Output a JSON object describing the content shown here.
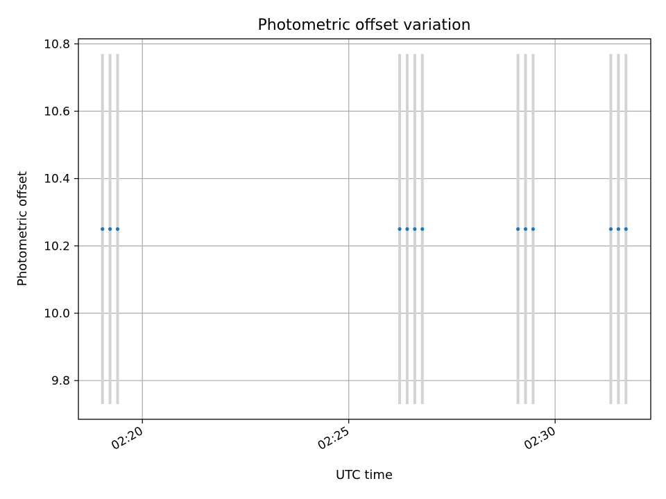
{
  "chart_data": {
    "type": "scatter",
    "title": "Photometric offset variation",
    "xlabel": "UTC time",
    "ylabel": "Photometric offset",
    "x_is_time": true,
    "xlim": [
      "02:18:27",
      "02:32:19"
    ],
    "ylim": [
      9.685,
      10.815
    ],
    "x_ticks": [
      "02:20",
      "02:25",
      "02:30"
    ],
    "y_ticks": [
      9.8,
      10.0,
      10.2,
      10.4,
      10.6,
      10.8
    ],
    "grid": true,
    "colors": {
      "points": "#1f77b4",
      "error_bars": "#d3d3d3",
      "grid": "#b0b0b0",
      "axes": "#000000"
    },
    "points": [
      {
        "x": "02:19:02",
        "y": 10.25,
        "yerr": 0.52
      },
      {
        "x": "02:19:13",
        "y": 10.25,
        "yerr": 0.52
      },
      {
        "x": "02:19:24",
        "y": 10.25,
        "yerr": 0.52
      },
      {
        "x": "02:26:14",
        "y": 10.25,
        "yerr": 0.52
      },
      {
        "x": "02:26:25",
        "y": 10.25,
        "yerr": 0.52
      },
      {
        "x": "02:26:36",
        "y": 10.25,
        "yerr": 0.52
      },
      {
        "x": "02:26:47",
        "y": 10.25,
        "yerr": 0.52
      },
      {
        "x": "02:29:06",
        "y": 10.25,
        "yerr": 0.52
      },
      {
        "x": "02:29:17",
        "y": 10.25,
        "yerr": 0.52
      },
      {
        "x": "02:29:28",
        "y": 10.25,
        "yerr": 0.52
      },
      {
        "x": "02:31:21",
        "y": 10.25,
        "yerr": 0.52
      },
      {
        "x": "02:31:32",
        "y": 10.25,
        "yerr": 0.52
      },
      {
        "x": "02:31:43",
        "y": 10.25,
        "yerr": 0.52
      }
    ]
  }
}
